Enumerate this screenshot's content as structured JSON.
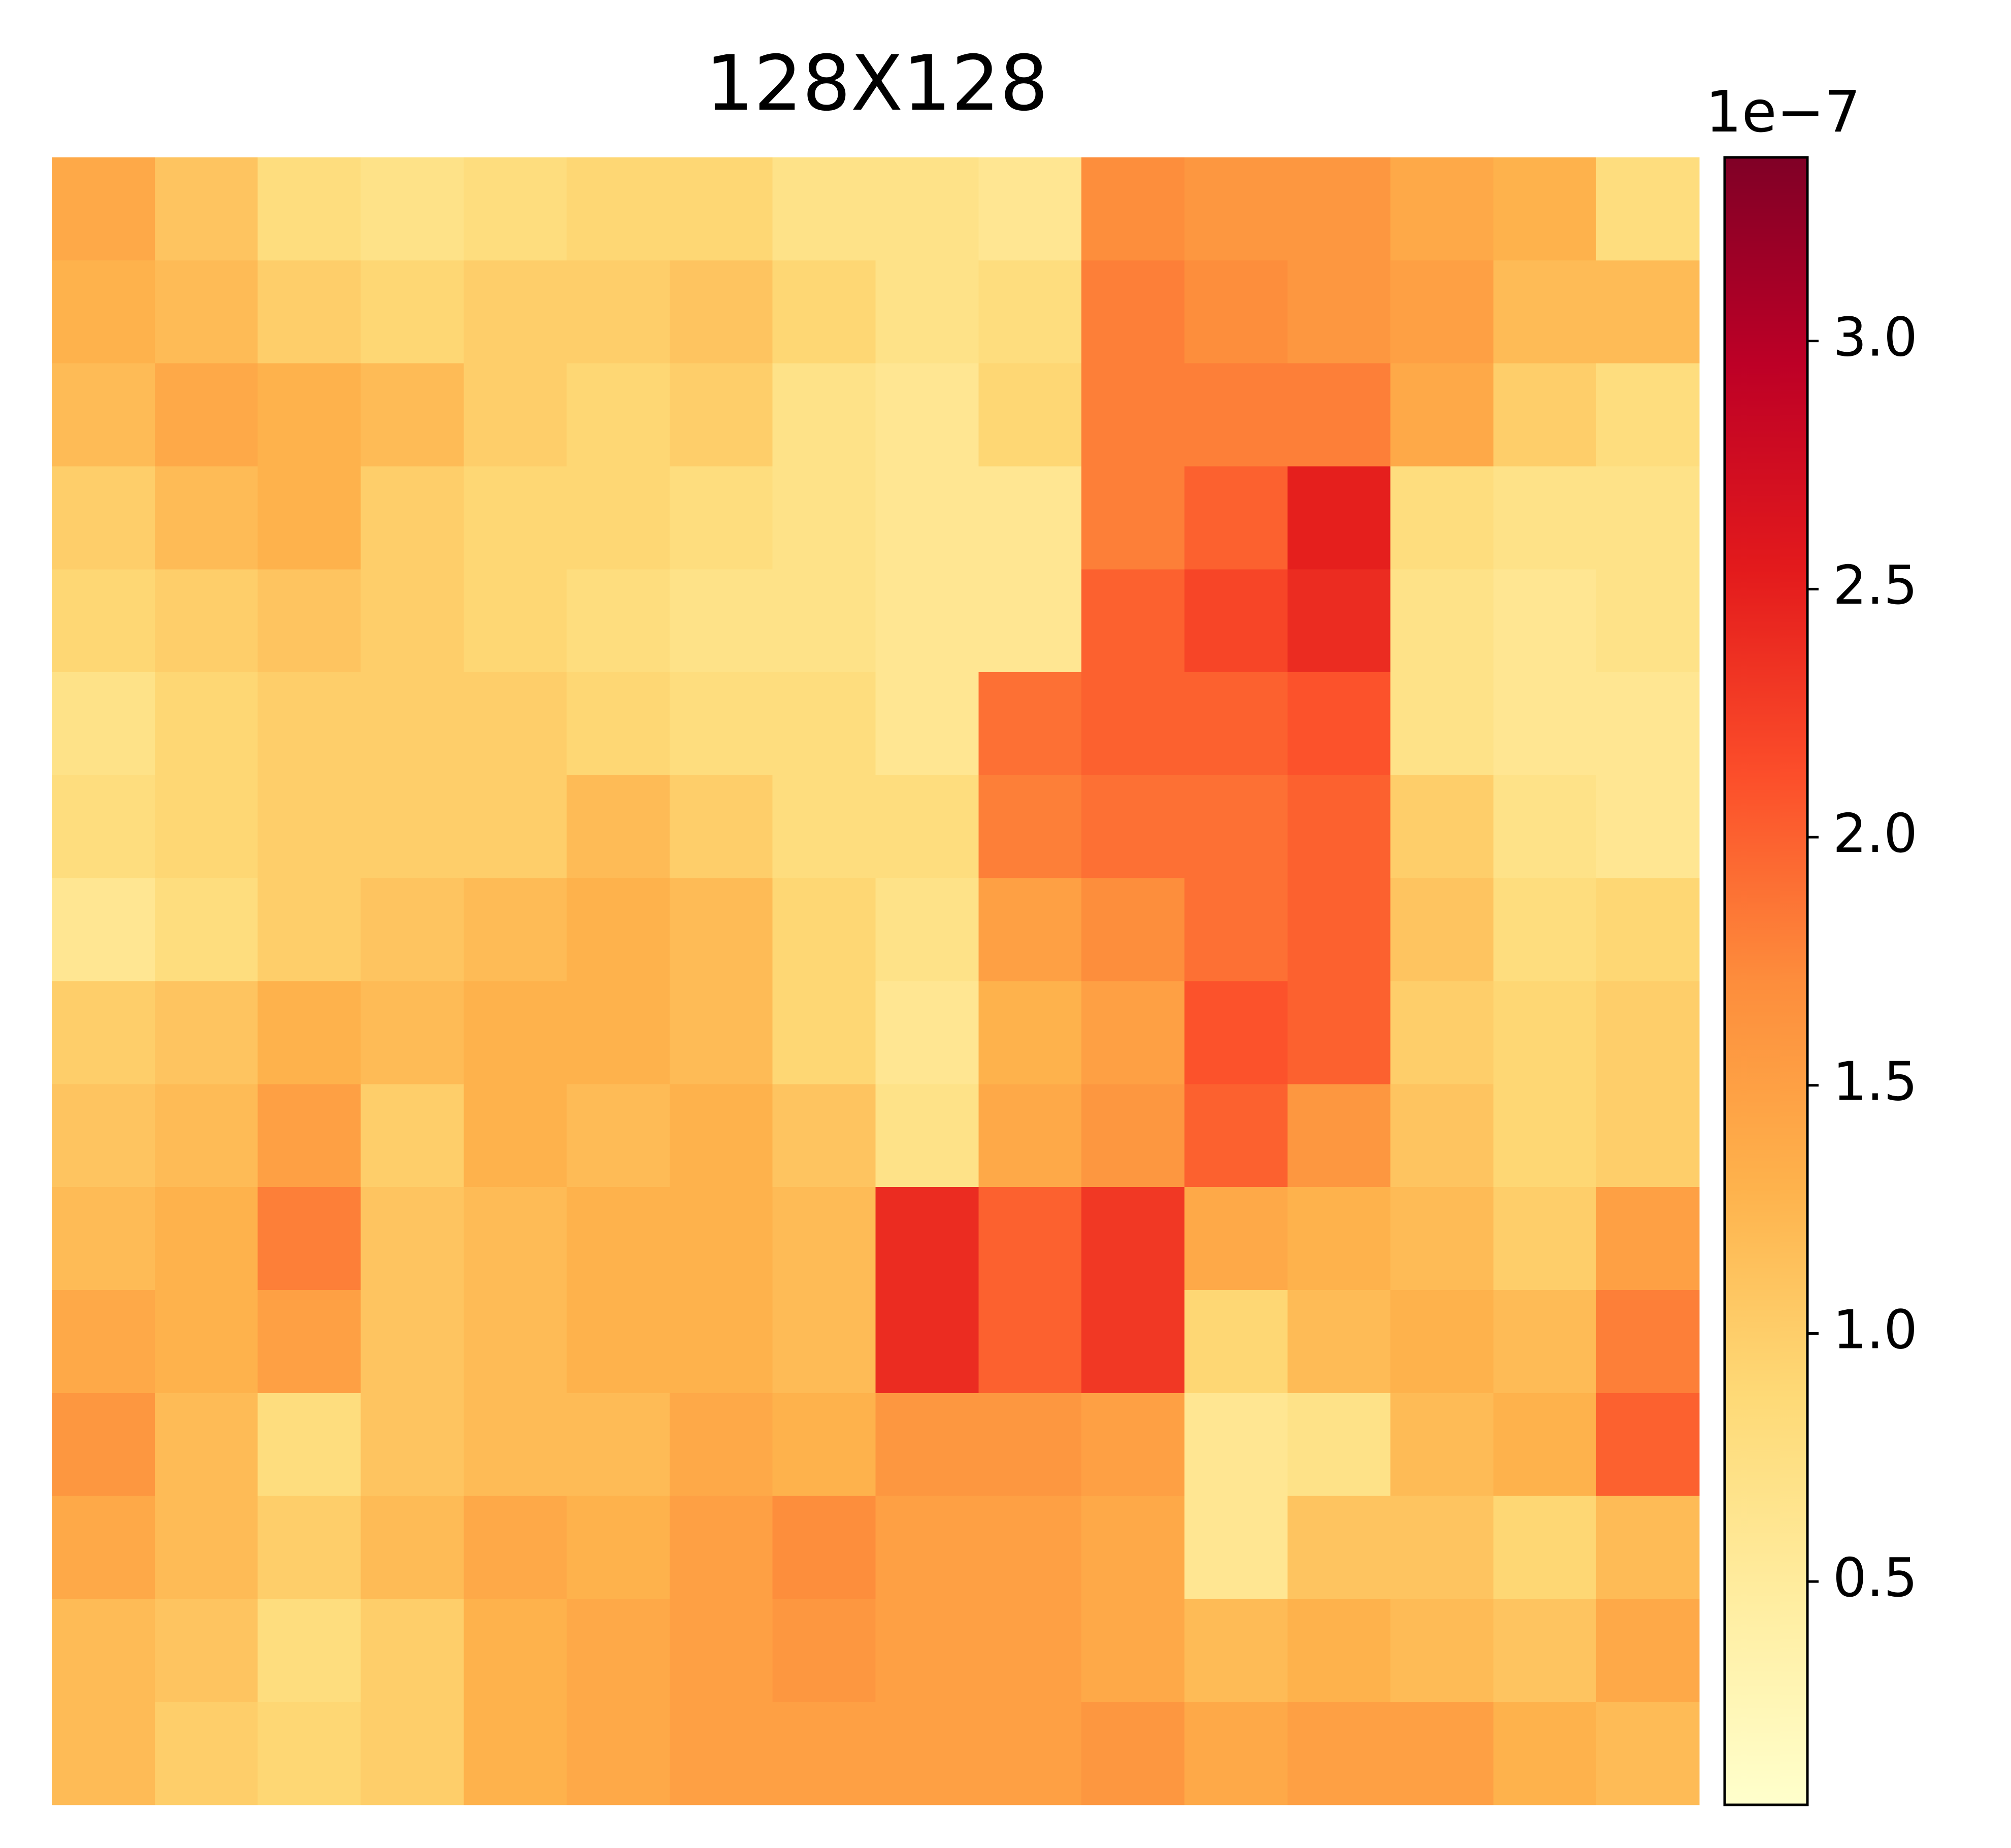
{
  "chart_data": {
    "type": "heatmap",
    "title": "128X128",
    "colormap": "YlOrRd",
    "z": [
      [
        1.4,
        1.1,
        0.8,
        0.7,
        0.8,
        0.9,
        0.9,
        0.7,
        0.7,
        0.6,
        1.7,
        1.6,
        1.6,
        1.4,
        1.3,
        0.8
      ],
      [
        1.3,
        1.2,
        1.0,
        0.9,
        1.0,
        1.0,
        1.1,
        0.9,
        0.7,
        0.8,
        1.8,
        1.7,
        1.6,
        1.5,
        1.2,
        1.2
      ],
      [
        1.2,
        1.4,
        1.3,
        1.2,
        1.0,
        0.9,
        1.0,
        0.7,
        0.6,
        0.9,
        1.8,
        1.8,
        1.8,
        1.4,
        1.0,
        0.8
      ],
      [
        1.0,
        1.2,
        1.3,
        1.0,
        0.9,
        0.9,
        0.8,
        0.7,
        0.6,
        0.6,
        1.8,
        2.0,
        2.5,
        0.8,
        0.7,
        0.7
      ],
      [
        0.9,
        1.0,
        1.1,
        1.0,
        0.9,
        0.8,
        0.7,
        0.7,
        0.6,
        0.6,
        2.0,
        2.2,
        2.4,
        0.7,
        0.6,
        0.7
      ],
      [
        0.7,
        0.9,
        1.0,
        1.0,
        1.0,
        0.9,
        0.8,
        0.8,
        0.6,
        1.9,
        2.0,
        2.0,
        2.1,
        0.7,
        0.6,
        0.6
      ],
      [
        0.8,
        0.9,
        1.0,
        1.0,
        1.0,
        1.2,
        1.0,
        0.8,
        0.8,
        1.8,
        1.9,
        1.9,
        2.0,
        1.0,
        0.7,
        0.6
      ],
      [
        0.6,
        0.8,
        1.0,
        1.1,
        1.2,
        1.3,
        1.2,
        0.9,
        0.7,
        1.5,
        1.7,
        1.9,
        2.0,
        1.1,
        0.8,
        0.9
      ],
      [
        1.0,
        1.1,
        1.3,
        1.2,
        1.3,
        1.3,
        1.2,
        0.9,
        0.6,
        1.3,
        1.5,
        2.1,
        2.0,
        1.0,
        0.9,
        1.0
      ],
      [
        1.1,
        1.2,
        1.5,
        1.0,
        1.3,
        1.2,
        1.3,
        1.1,
        0.7,
        1.4,
        1.6,
        2.0,
        1.6,
        1.1,
        0.9,
        1.0
      ],
      [
        1.2,
        1.3,
        1.8,
        1.1,
        1.2,
        1.3,
        1.3,
        1.2,
        2.4,
        2.0,
        2.3,
        1.4,
        1.3,
        1.2,
        1.0,
        1.5
      ],
      [
        1.4,
        1.3,
        1.5,
        1.1,
        1.2,
        1.3,
        1.3,
        1.2,
        2.4,
        2.0,
        2.3,
        0.9,
        1.2,
        1.3,
        1.2,
        1.8
      ],
      [
        1.6,
        1.2,
        0.8,
        1.1,
        1.2,
        1.2,
        1.4,
        1.3,
        1.6,
        1.6,
        1.5,
        0.6,
        0.7,
        1.2,
        1.3,
        2.0
      ],
      [
        1.4,
        1.2,
        1.0,
        1.2,
        1.4,
        1.3,
        1.5,
        1.7,
        1.5,
        1.5,
        1.4,
        0.6,
        1.1,
        1.1,
        0.9,
        1.2
      ],
      [
        1.2,
        1.1,
        0.8,
        1.0,
        1.3,
        1.4,
        1.5,
        1.6,
        1.5,
        1.5,
        1.4,
        1.2,
        1.3,
        1.2,
        1.1,
        1.4
      ],
      [
        1.2,
        1.0,
        0.9,
        1.0,
        1.3,
        1.4,
        1.5,
        1.5,
        1.5,
        1.5,
        1.6,
        1.4,
        1.5,
        1.5,
        1.3,
        1.2
      ]
    ],
    "colorbar": {
      "lim": [
        0.05,
        3.37
      ],
      "ticks": [
        0.5,
        {
          "value": 1,
          "label": "1.0"
        },
        1.5,
        {
          "value": 2,
          "label": "2.0"
        },
        2.5,
        {
          "value": 3,
          "label": "3.0"
        }
      ],
      "offset_label": "1e−7"
    }
  }
}
